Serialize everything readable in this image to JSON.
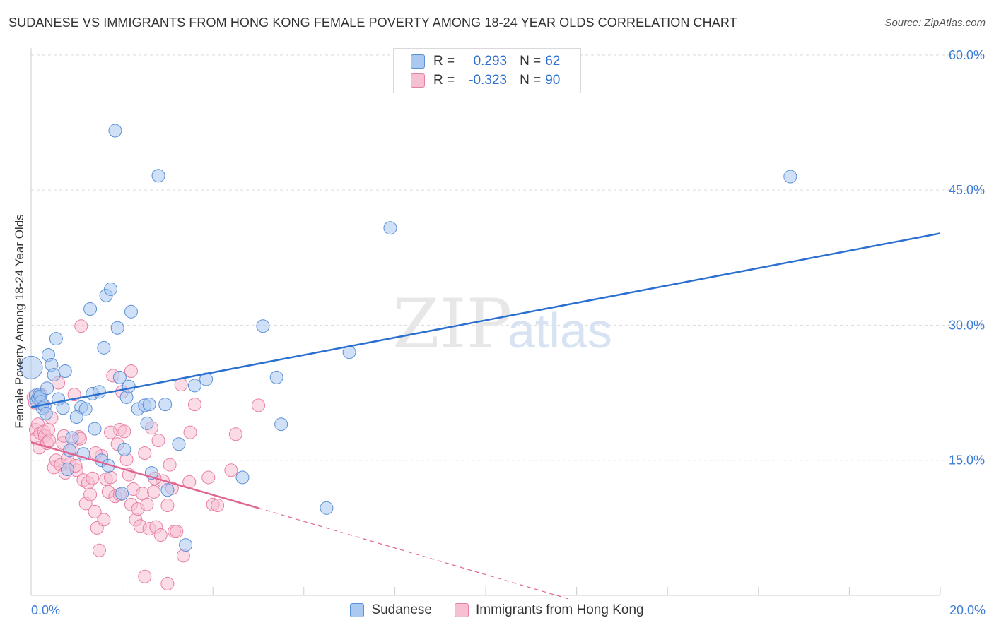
{
  "title": "SUDANESE VS IMMIGRANTS FROM HONG KONG FEMALE POVERTY AMONG 18-24 YEAR OLDS CORRELATION CHART",
  "source": "Source: ZipAtlas.com",
  "watermark": {
    "zip": "ZIP",
    "atlas": "atlas"
  },
  "legend": {
    "r_label": "R =",
    "n_label": "N =",
    "series": [
      {
        "name": "Sudanese",
        "r": "0.293",
        "n": "62",
        "fill": "#aac8f0",
        "stroke": "#5b8fd6"
      },
      {
        "name": "Immigrants from Hong Kong",
        "r": "-0.323",
        "n": "90",
        "fill": "#f7c0d2",
        "stroke": "#e77fa3"
      }
    ]
  },
  "chart_data": {
    "type": "scatter",
    "title": "SUDANESE VS IMMIGRANTS FROM HONG KONG FEMALE POVERTY AMONG 18-24 YEAR OLDS CORRELATION CHART",
    "xlabel": "",
    "ylabel": "Female Poverty Among 18-24 Year Olds",
    "xlim": [
      0,
      20
    ],
    "ylim": [
      0,
      60
    ],
    "x_tick_labels": [
      "0.0%",
      "20.0%"
    ],
    "y_ticks": [
      15,
      30,
      45,
      60
    ],
    "y_tick_labels": [
      "15.0%",
      "30.0%",
      "45.0%",
      "60.0%"
    ],
    "grid": true,
    "colors": {
      "sudanese_line": "#2b6fd0",
      "hk_line": "#e06593",
      "axis_label": "#3d7dd6",
      "grid": "#dcdcdc"
    },
    "series": [
      {
        "name": "Sudanese",
        "color": "#5b8fd6",
        "trend": {
          "x0": 0,
          "y0": 20.9,
          "x1": 20,
          "y1": 40.2
        },
        "points": [
          [
            0.0,
            25.3
          ],
          [
            0.1,
            22.2
          ],
          [
            0.12,
            21.6
          ],
          [
            0.15,
            21.9
          ],
          [
            0.18,
            22.3
          ],
          [
            0.2,
            22.1
          ],
          [
            0.22,
            21.5
          ],
          [
            0.25,
            20.8
          ],
          [
            0.3,
            21.0
          ],
          [
            0.33,
            20.2
          ],
          [
            0.35,
            23.0
          ],
          [
            0.38,
            26.7
          ],
          [
            0.45,
            25.6
          ],
          [
            0.5,
            24.5
          ],
          [
            0.55,
            28.5
          ],
          [
            0.7,
            20.8
          ],
          [
            0.75,
            24.9
          ],
          [
            0.8,
            14.0
          ],
          [
            0.85,
            16.1
          ],
          [
            0.9,
            17.5
          ],
          [
            1.1,
            20.9
          ],
          [
            1.15,
            15.7
          ],
          [
            1.2,
            20.7
          ],
          [
            1.3,
            31.8
          ],
          [
            1.35,
            22.4
          ],
          [
            1.4,
            18.5
          ],
          [
            1.5,
            22.6
          ],
          [
            1.55,
            15.0
          ],
          [
            1.6,
            27.5
          ],
          [
            1.65,
            33.3
          ],
          [
            1.7,
            14.4
          ],
          [
            1.75,
            34.0
          ],
          [
            1.85,
            51.6
          ],
          [
            1.9,
            29.7
          ],
          [
            1.95,
            24.2
          ],
          [
            2.0,
            11.3
          ],
          [
            2.05,
            16.2
          ],
          [
            2.1,
            22.0
          ],
          [
            2.15,
            23.2
          ],
          [
            2.2,
            31.5
          ],
          [
            2.35,
            20.7
          ],
          [
            2.5,
            21.1
          ],
          [
            2.55,
            19.1
          ],
          [
            2.6,
            21.2
          ],
          [
            2.65,
            13.6
          ],
          [
            2.8,
            46.6
          ],
          [
            2.95,
            21.2
          ],
          [
            3.0,
            11.7
          ],
          [
            3.25,
            16.8
          ],
          [
            3.6,
            23.3
          ],
          [
            3.85,
            24.0
          ],
          [
            4.65,
            13.1
          ],
          [
            5.1,
            29.9
          ],
          [
            5.4,
            24.2
          ],
          [
            5.5,
            19.0
          ],
          [
            6.5,
            9.7
          ],
          [
            7.0,
            27.0
          ],
          [
            7.9,
            40.8
          ],
          [
            16.7,
            46.5
          ],
          [
            3.4,
            5.6
          ],
          [
            0.6,
            21.8
          ],
          [
            1.0,
            19.8
          ]
        ]
      },
      {
        "name": "Immigrants from Hong Kong",
        "color": "#e77fa3",
        "trend": {
          "x0": 0,
          "y0": 17.0,
          "x1": 5.0,
          "y1": 9.7,
          "dash_x1": 11.9,
          "dash_y1": -0.5
        },
        "points": [
          [
            0.05,
            22.0
          ],
          [
            0.08,
            21.4
          ],
          [
            0.1,
            18.4
          ],
          [
            0.12,
            17.5
          ],
          [
            0.15,
            19.0
          ],
          [
            0.18,
            16.4
          ],
          [
            0.2,
            18.0
          ],
          [
            0.22,
            22.3
          ],
          [
            0.25,
            21.2
          ],
          [
            0.28,
            18.2
          ],
          [
            0.3,
            17.7
          ],
          [
            0.35,
            16.9
          ],
          [
            0.38,
            18.4
          ],
          [
            0.4,
            17.2
          ],
          [
            0.45,
            19.7
          ],
          [
            0.5,
            14.2
          ],
          [
            0.55,
            15.0
          ],
          [
            0.6,
            23.6
          ],
          [
            0.65,
            14.5
          ],
          [
            0.7,
            16.9
          ],
          [
            0.72,
            17.7
          ],
          [
            0.75,
            13.6
          ],
          [
            0.8,
            15.2
          ],
          [
            0.85,
            14.6
          ],
          [
            0.9,
            16.3
          ],
          [
            0.95,
            22.3
          ],
          [
            1.0,
            13.9
          ],
          [
            1.05,
            17.6
          ],
          [
            1.1,
            29.9
          ],
          [
            1.15,
            12.8
          ],
          [
            1.2,
            10.2
          ],
          [
            1.25,
            12.5
          ],
          [
            1.3,
            11.2
          ],
          [
            1.35,
            13.0
          ],
          [
            1.4,
            9.3
          ],
          [
            1.45,
            7.5
          ],
          [
            1.5,
            5.0
          ],
          [
            1.55,
            15.5
          ],
          [
            1.6,
            8.4
          ],
          [
            1.65,
            12.9
          ],
          [
            1.7,
            11.5
          ],
          [
            1.75,
            13.1
          ],
          [
            1.8,
            24.4
          ],
          [
            1.85,
            11.0
          ],
          [
            1.9,
            16.8
          ],
          [
            1.95,
            18.4
          ],
          [
            2.0,
            22.6
          ],
          [
            2.05,
            18.2
          ],
          [
            2.1,
            15.1
          ],
          [
            2.15,
            13.4
          ],
          [
            2.2,
            10.1
          ],
          [
            2.25,
            11.8
          ],
          [
            2.3,
            8.4
          ],
          [
            2.35,
            9.6
          ],
          [
            2.4,
            7.7
          ],
          [
            2.45,
            11.3
          ],
          [
            2.5,
            15.8
          ],
          [
            2.55,
            10.1
          ],
          [
            2.6,
            7.4
          ],
          [
            2.65,
            18.6
          ],
          [
            2.7,
            11.5
          ],
          [
            2.75,
            7.6
          ],
          [
            2.8,
            17.2
          ],
          [
            2.85,
            6.7
          ],
          [
            2.9,
            12.7
          ],
          [
            3.0,
            10.0
          ],
          [
            3.05,
            14.5
          ],
          [
            3.1,
            11.9
          ],
          [
            3.15,
            7.1
          ],
          [
            3.2,
            7.1
          ],
          [
            3.3,
            23.4
          ],
          [
            3.35,
            4.4
          ],
          [
            3.5,
            18.1
          ],
          [
            3.6,
            21.2
          ],
          [
            3.9,
            13.1
          ],
          [
            4.0,
            10.1
          ],
          [
            4.1,
            10.0
          ],
          [
            4.4,
            13.9
          ],
          [
            4.5,
            17.9
          ],
          [
            5.0,
            21.1
          ],
          [
            2.5,
            2.1
          ],
          [
            3.0,
            1.3
          ],
          [
            2.2,
            24.9
          ],
          [
            1.75,
            18.1
          ],
          [
            0.98,
            14.4
          ],
          [
            1.08,
            17.4
          ],
          [
            1.42,
            15.8
          ],
          [
            2.72,
            13.0
          ],
          [
            3.48,
            12.6
          ],
          [
            1.95,
            11.2
          ]
        ]
      }
    ]
  }
}
